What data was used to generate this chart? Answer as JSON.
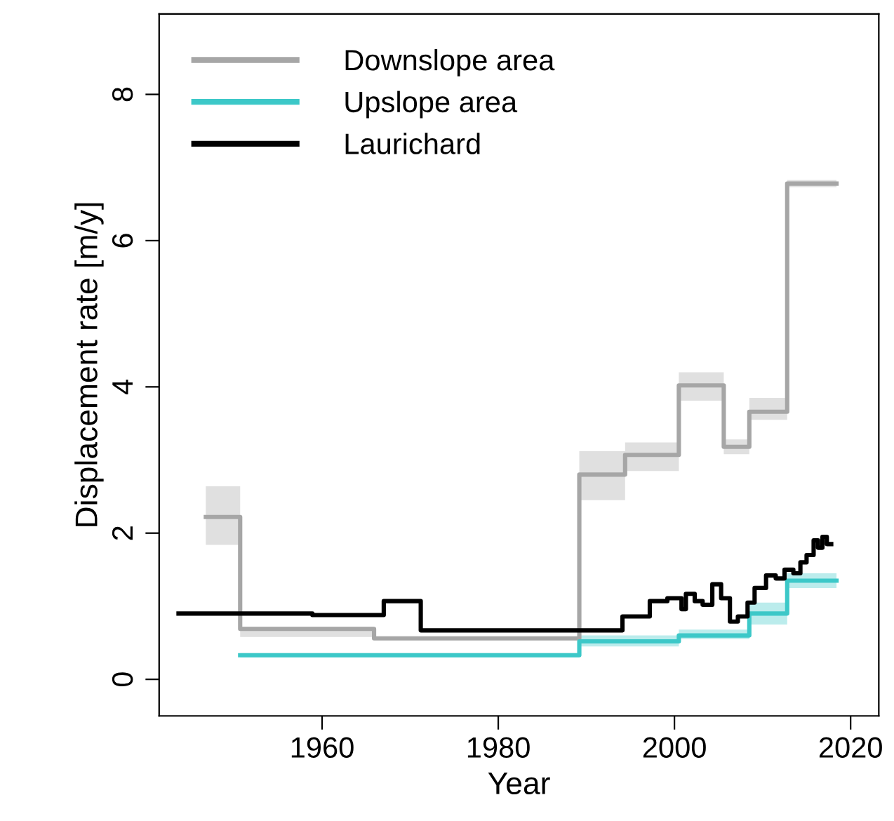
{
  "chart_data": {
    "type": "step",
    "xlabel": "Year",
    "ylabel": "Displacement rate [m/y]",
    "xlim": [
      1941.5,
      2023.2
    ],
    "ylim": [
      -0.5,
      9.1
    ],
    "xticks": [
      1960,
      1980,
      2000,
      2020
    ],
    "yticks": [
      0,
      2,
      4,
      6,
      8
    ],
    "grid": false,
    "legend": "top left",
    "line_style": "solid",
    "marker": "none",
    "series": [
      {
        "name": "Downslope area",
        "color": "#a6a6a6",
        "x": [
          1946.8,
          1950.7,
          1965.9,
          1989.2,
          1994.4,
          2000.5,
          2005.6,
          2008.5,
          2012.8,
          2018.4
        ],
        "values": [
          2.22,
          0.69,
          0.56,
          2.8,
          3.07,
          4.02,
          3.18,
          3.66,
          6.78,
          6.78
        ],
        "lower": [
          1.84,
          0.58,
          0.54,
          2.45,
          2.85,
          3.81,
          3.08,
          3.55,
          6.73,
          6.73
        ],
        "upper": [
          2.64,
          0.72,
          0.58,
          3.12,
          3.24,
          4.2,
          3.28,
          3.85,
          6.83,
          6.83
        ]
      },
      {
        "name": "Upslope area",
        "color": "#3cc8c8",
        "x": [
          1950.7,
          1989.2,
          2000.5,
          2008.5,
          2012.8,
          2018.4
        ],
        "values": [
          0.33,
          0.52,
          0.6,
          0.9,
          1.35,
          1.35
        ],
        "lower": [
          0.3,
          0.45,
          0.55,
          0.75,
          1.25,
          1.25
        ],
        "upper": [
          0.36,
          0.6,
          0.68,
          1.05,
          1.45,
          1.45
        ]
      },
      {
        "name": "Laurichard",
        "color": "#000000",
        "x": [
          1943.7,
          1958.9,
          1967.0,
          1971.2,
          1994.1,
          1997.2,
          1999.2,
          2000.8,
          2001.3,
          2002.3,
          2003.2,
          2004.3,
          2005.3,
          2006.3,
          2007.2,
          2008.3,
          2009.1,
          2010.4,
          2011.5,
          2012.5,
          2013.5,
          2014.3,
          2015.0,
          2015.8,
          2016.3,
          2016.8,
          2017.3,
          2017.8
        ],
        "values": [
          0.9,
          0.88,
          1.07,
          0.67,
          0.86,
          1.07,
          1.11,
          0.96,
          1.17,
          1.07,
          1.02,
          1.3,
          1.11,
          0.79,
          0.86,
          1.05,
          1.25,
          1.42,
          1.38,
          1.5,
          1.45,
          1.6,
          1.7,
          1.9,
          1.8,
          1.95,
          1.85,
          1.85
        ]
      }
    ]
  }
}
